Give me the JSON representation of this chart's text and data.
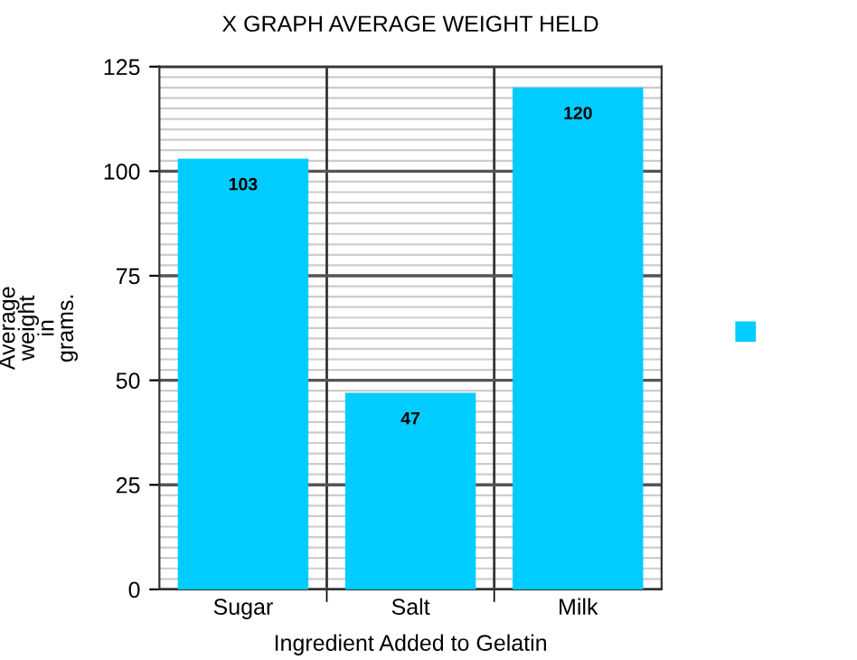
{
  "chart_data": {
    "type": "bar",
    "title": "X GRAPH AVERAGE WEIGHT HELD",
    "xlabel": "Ingredient Added to Gelatin",
    "ylabel": "Average\nweight\nin\ngrams.",
    "categories": [
      "Sugar",
      "Salt",
      "Milk"
    ],
    "series": [
      {
        "color": "#00ccff",
        "values": [
          103,
          47,
          120
        ]
      }
    ],
    "ylim": [
      0,
      125
    ],
    "yticks": [
      0,
      25,
      50,
      75,
      100,
      125
    ],
    "grid": true,
    "data_labels": true
  }
}
